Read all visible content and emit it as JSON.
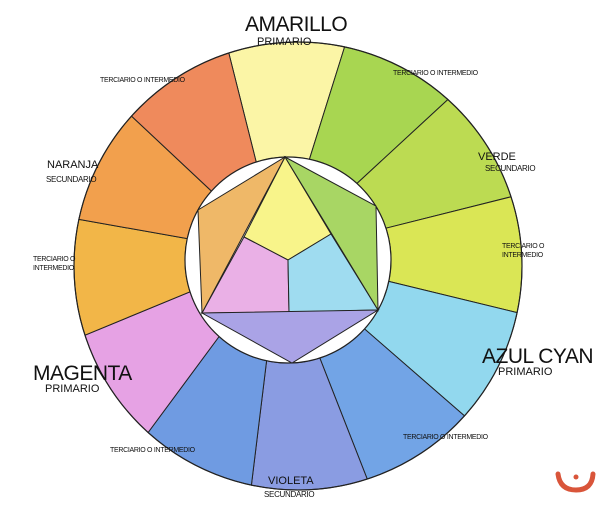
{
  "labels": {
    "amarillo": "AMARILLO",
    "amarillo_sub": "PRIMARIO",
    "tert_top_left": "TERCIARIO O INTERMEDIO",
    "tert_top_right": "TERCIARIO O INTERMEDIO",
    "naranja": "NARANJA",
    "naranja_sub": "SECUNDARIO",
    "tert_left_1": "TERCIARIO O",
    "tert_left_2": "INTERMEDIO",
    "verde": "VERDE",
    "verde_sub": "SECUNDARIO",
    "tert_right_1": "TERCIARIO O",
    "tert_right_2": "INTERMEDIO",
    "magenta": "MAGENTA",
    "magenta_sub": "PRIMARIO",
    "azul": "AZUL CYAN",
    "azul_sub": "PRIMARIO",
    "tert_bottom_left": "TERCIARIO O INTERMEDIO",
    "tert_bottom_right": "TERCIARIO O INTERMEDIO",
    "violeta": "VIOLETA",
    "violeta_sub": "SECUNDARIO"
  },
  "wheel_segments_clockwise_from_top": [
    {
      "name": "amarillo",
      "color": "#fbf5a6"
    },
    {
      "name": "terciario-amarillo-verde",
      "color": "#a8d651"
    },
    {
      "name": "verde",
      "color": "#bcdb52"
    },
    {
      "name": "terciario-verde-cyan",
      "color": "#dae655"
    },
    {
      "name": "azul-cyan",
      "color": "#92d8ee"
    },
    {
      "name": "terciario-cyan-violeta",
      "color": "#72a4e6"
    },
    {
      "name": "violeta",
      "color": "#8a9ce2"
    },
    {
      "name": "terciario-violeta-magenta",
      "color": "#6f9be2"
    },
    {
      "name": "magenta",
      "color": "#e6a2e4"
    },
    {
      "name": "terciario-magenta-naranja",
      "color": "#f2b648"
    },
    {
      "name": "naranja",
      "color": "#f2a04d"
    },
    {
      "name": "terciario-naranja-amarillo",
      "color": "#ef8a5c"
    }
  ],
  "center_triangles": [
    {
      "name": "yellow",
      "color": "#f8f48a"
    },
    {
      "name": "pink",
      "color": "#eab0e6"
    },
    {
      "name": "cyan",
      "color": "#9fdcf0"
    },
    {
      "name": "orange",
      "color": "#efb868"
    },
    {
      "name": "green",
      "color": "#a8d664"
    },
    {
      "name": "violet",
      "color": "#aaa3e6"
    }
  ],
  "logo_color": "#d9553a"
}
